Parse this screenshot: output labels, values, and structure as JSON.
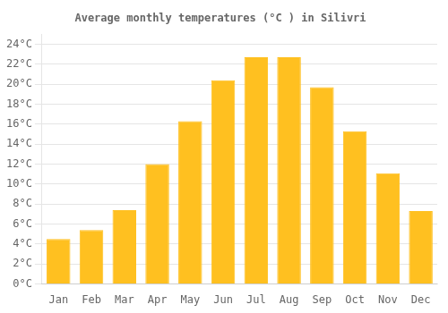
{
  "chart_data": {
    "type": "bar",
    "title": "Average monthly temperatures (°C ) in Silivri",
    "categories": [
      "Jan",
      "Feb",
      "Mar",
      "Apr",
      "May",
      "Jun",
      "Jul",
      "Aug",
      "Sep",
      "Oct",
      "Nov",
      "Dec"
    ],
    "values": [
      4.5,
      5.4,
      7.4,
      12.0,
      16.3,
      20.4,
      22.7,
      22.7,
      19.7,
      15.3,
      11.1,
      7.3
    ],
    "color": "#FFC020",
    "ylim": [
      0,
      25
    ],
    "yticks": [
      {
        "value": 0,
        "label": "0°C"
      },
      {
        "value": 2,
        "label": "2°C"
      },
      {
        "value": 4,
        "label": "4°C"
      },
      {
        "value": 6,
        "label": "6°C"
      },
      {
        "value": 8,
        "label": "8°C"
      },
      {
        "value": 10,
        "label": "10°C"
      },
      {
        "value": 12,
        "label": "12°C"
      },
      {
        "value": 14,
        "label": "14°C"
      },
      {
        "value": 16,
        "label": "16°C"
      },
      {
        "value": 18,
        "label": "18°C"
      },
      {
        "value": 20,
        "label": "20°C"
      },
      {
        "value": 22,
        "label": "22°C"
      },
      {
        "value": 24,
        "label": "24°C"
      }
    ],
    "grid": true
  }
}
